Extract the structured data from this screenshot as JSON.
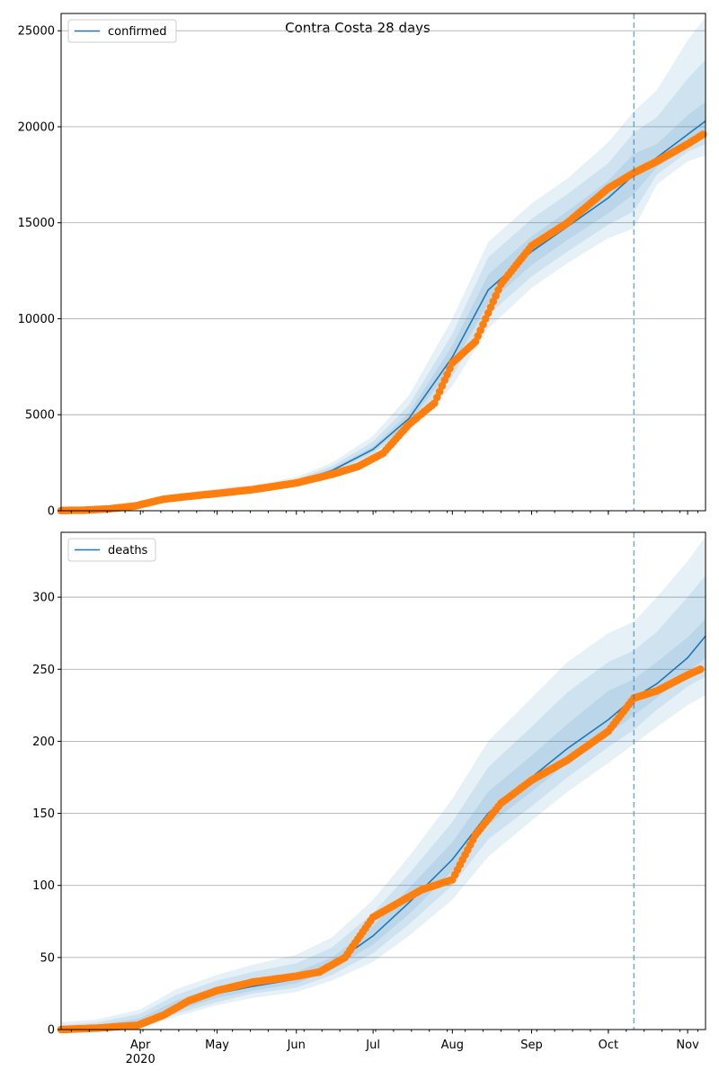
{
  "figure": {
    "title": "Contra Costa 28 days"
  },
  "colors": {
    "model": "#1f77b4",
    "observed": "#ff7f0e",
    "band": "#1f77b4",
    "forecast_line": "#1f77b4"
  },
  "x_axis": {
    "range": [
      "2020-03-01",
      "2020-11-08"
    ],
    "month_ticks": [
      {
        "date": "2020-04-01",
        "label": "Apr"
      },
      {
        "date": "2020-05-01",
        "label": "May"
      },
      {
        "date": "2020-06-01",
        "label": "Jun"
      },
      {
        "date": "2020-07-01",
        "label": "Jul"
      },
      {
        "date": "2020-08-01",
        "label": "Aug"
      },
      {
        "date": "2020-09-01",
        "label": "Sep"
      },
      {
        "date": "2020-10-01",
        "label": "Oct"
      },
      {
        "date": "2020-11-01",
        "label": "Nov"
      }
    ],
    "year_label": "2020",
    "forecast_start": "2020-10-11"
  },
  "chart_data": [
    {
      "type": "line",
      "legend": "confirmed",
      "legend_position": "top-left",
      "grid": true,
      "ylim": [
        0,
        25900
      ],
      "yticks": [
        0,
        5000,
        10000,
        15000,
        20000,
        25000
      ],
      "model": {
        "x": [
          "2020-03-01",
          "2020-03-15",
          "2020-04-01",
          "2020-04-15",
          "2020-05-01",
          "2020-05-15",
          "2020-06-01",
          "2020-06-15",
          "2020-07-01",
          "2020-07-15",
          "2020-08-01",
          "2020-08-15",
          "2020-09-01",
          "2020-09-15",
          "2020-10-01",
          "2020-10-11",
          "2020-10-20",
          "2020-11-01",
          "2020-11-08"
        ],
        "y": [
          20,
          60,
          300,
          650,
          950,
          1150,
          1500,
          2100,
          3200,
          4800,
          8000,
          11500,
          13500,
          14800,
          16300,
          17500,
          18400,
          19600,
          20300
        ],
        "bands": [
          {
            "lower": [
              0,
              30,
              200,
              520,
              820,
              1000,
              1300,
              1850,
              2800,
              4100,
              6500,
              9500,
              11600,
              12900,
              14200,
              14700,
              17000,
              18200,
              18500
            ],
            "upper": [
              80,
              150,
              450,
              850,
              1150,
              1350,
              1750,
              2500,
              3900,
              6000,
              10000,
              14000,
              16000,
              17300,
              19200,
              20800,
              21900,
              24500,
              25700
            ]
          },
          {
            "lower": [
              5,
              40,
              240,
              570,
              870,
              1060,
              1380,
              1950,
              2950,
              4350,
              7000,
              10200,
              12200,
              13500,
              14900,
              15600,
              17500,
              18700,
              19100
            ],
            "upper": [
              55,
              110,
              380,
              760,
              1070,
              1270,
              1640,
              2330,
              3600,
              5500,
              9200,
              13200,
              15200,
              16500,
              18100,
              19700,
              20500,
              22500,
              23500
            ]
          },
          {
            "lower": [
              10,
              48,
              270,
              610,
              910,
              1110,
              1440,
              2030,
              3070,
              4580,
              7500,
              10800,
              12800,
              14100,
              15500,
              16500,
              17900,
              19100,
              19600
            ],
            "upper": [
              35,
              80,
              330,
              700,
              1010,
              1210,
              1570,
              2200,
              3350,
              5100,
              8600,
              12300,
              14300,
              15600,
              17200,
              18600,
              19100,
              20600,
              21300
            ]
          }
        ]
      },
      "observed": {
        "x": [
          "2020-03-01",
          "2020-03-10",
          "2020-03-20",
          "2020-03-30",
          "2020-04-10",
          "2020-04-20",
          "2020-05-01",
          "2020-05-15",
          "2020-06-01",
          "2020-06-15",
          "2020-06-25",
          "2020-07-05",
          "2020-07-15",
          "2020-07-25",
          "2020-08-01",
          "2020-08-10",
          "2020-08-20",
          "2020-09-01",
          "2020-09-15",
          "2020-10-01",
          "2020-10-11",
          "2020-10-20",
          "2020-11-01",
          "2020-11-07"
        ],
        "y": [
          10,
          30,
          100,
          250,
          600,
          750,
          900,
          1100,
          1450,
          1900,
          2300,
          3000,
          4500,
          5600,
          7700,
          8800,
          11800,
          13800,
          15000,
          16800,
          17600,
          18200,
          19100,
          19600
        ]
      }
    },
    {
      "type": "line",
      "legend": "deaths",
      "legend_position": "top-left",
      "grid": true,
      "ylim": [
        0,
        345
      ],
      "yticks": [
        0,
        50,
        100,
        150,
        200,
        250,
        300
      ],
      "model": {
        "x": [
          "2020-03-01",
          "2020-03-15",
          "2020-04-01",
          "2020-04-15",
          "2020-05-01",
          "2020-05-15",
          "2020-06-01",
          "2020-06-15",
          "2020-07-01",
          "2020-07-15",
          "2020-08-01",
          "2020-08-15",
          "2020-09-01",
          "2020-09-15",
          "2020-10-01",
          "2020-10-11",
          "2020-10-20",
          "2020-11-01",
          "2020-11-08"
        ],
        "y": [
          0,
          1,
          5,
          16,
          25,
          30,
          35,
          45,
          65,
          88,
          118,
          150,
          175,
          195,
          215,
          230,
          240,
          258,
          273
        ],
        "bands": [
          {
            "lower": [
              0,
              0,
              1,
              9,
              17,
              22,
              26,
              34,
              47,
              65,
              90,
              120,
              145,
              165,
              185,
              198,
              210,
              225,
              232
            ],
            "upper": [
              5,
              7,
              14,
              28,
              38,
              45,
              52,
              64,
              90,
              120,
              160,
              200,
              230,
              255,
              275,
              283,
              300,
              325,
              342
            ]
          },
          {
            "lower": [
              0,
              0,
              2,
              11,
              19,
              25,
              29,
              38,
              53,
              73,
              100,
              132,
              155,
              175,
              196,
              208,
              222,
              238,
              245
            ],
            "upper": [
              3,
              5,
              11,
              24,
              34,
              40,
              46,
              57,
              81,
              108,
              144,
              182,
              210,
              234,
              255,
              263,
              276,
              300,
              315
            ]
          },
          {
            "lower": [
              0,
              0,
              3,
              13,
              22,
              27,
              32,
              42,
              59,
              80,
              110,
              142,
              165,
              185,
              205,
              218,
              230,
              248,
              258
            ],
            "upper": [
              1,
              3,
              8,
              20,
              30,
              35,
              40,
              50,
              72,
              98,
              130,
              165,
              190,
              212,
              235,
              243,
              255,
              272,
              285
            ]
          }
        ]
      },
      "observed": {
        "x": [
          "2020-03-01",
          "2020-03-15",
          "2020-03-31",
          "2020-04-10",
          "2020-04-20",
          "2020-05-01",
          "2020-05-15",
          "2020-06-01",
          "2020-06-10",
          "2020-06-20",
          "2020-07-01",
          "2020-07-10",
          "2020-07-20",
          "2020-08-01",
          "2020-08-10",
          "2020-08-20",
          "2020-09-01",
          "2020-09-15",
          "2020-10-01",
          "2020-10-11",
          "2020-10-20",
          "2020-11-01",
          "2020-11-06"
        ],
        "y": [
          0,
          1,
          3,
          10,
          20,
          27,
          33,
          37,
          40,
          50,
          78,
          87,
          97,
          104,
          135,
          157,
          173,
          187,
          207,
          230,
          235,
          246,
          250
        ]
      }
    }
  ]
}
